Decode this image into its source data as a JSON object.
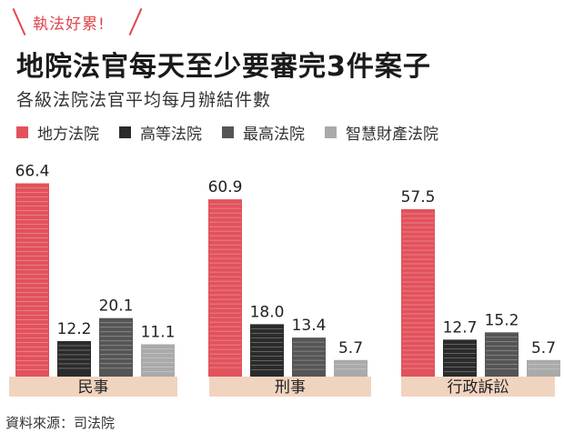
{
  "header": {
    "tag": "執法好累!",
    "title": "地院法官每天至少要審完3件案子",
    "subtitle": "各級法院法官平均每月辦結件數"
  },
  "source": "資料來源：司法院",
  "chart_data": {
    "type": "bar",
    "categories": [
      "民事",
      "刑事",
      "行政訴訟"
    ],
    "series": [
      {
        "name": "地方法院",
        "color": "#e2525c",
        "values": [
          66.4,
          60.9,
          57.5
        ]
      },
      {
        "name": "高等法院",
        "color": "#2b2b2b",
        "values": [
          12.2,
          18.0,
          12.7
        ]
      },
      {
        "name": "最高法院",
        "color": "#555555",
        "values": [
          20.1,
          13.4,
          15.2
        ]
      },
      {
        "name": "智慧財產法院",
        "color": "#aaaaaa",
        "values": [
          11.1,
          5.7,
          5.7
        ]
      }
    ],
    "value_labels": [
      [
        "66.4",
        "60.9",
        "57.5"
      ],
      [
        "12.2",
        "18.0",
        "12.7"
      ],
      [
        "20.1",
        "13.4",
        "15.2"
      ],
      [
        "11.1",
        "5.7",
        "5.7"
      ]
    ],
    "ylim": [
      0,
      70
    ],
    "grid": false,
    "legend_position": "top",
    "base_color": "#f1d4c0"
  }
}
